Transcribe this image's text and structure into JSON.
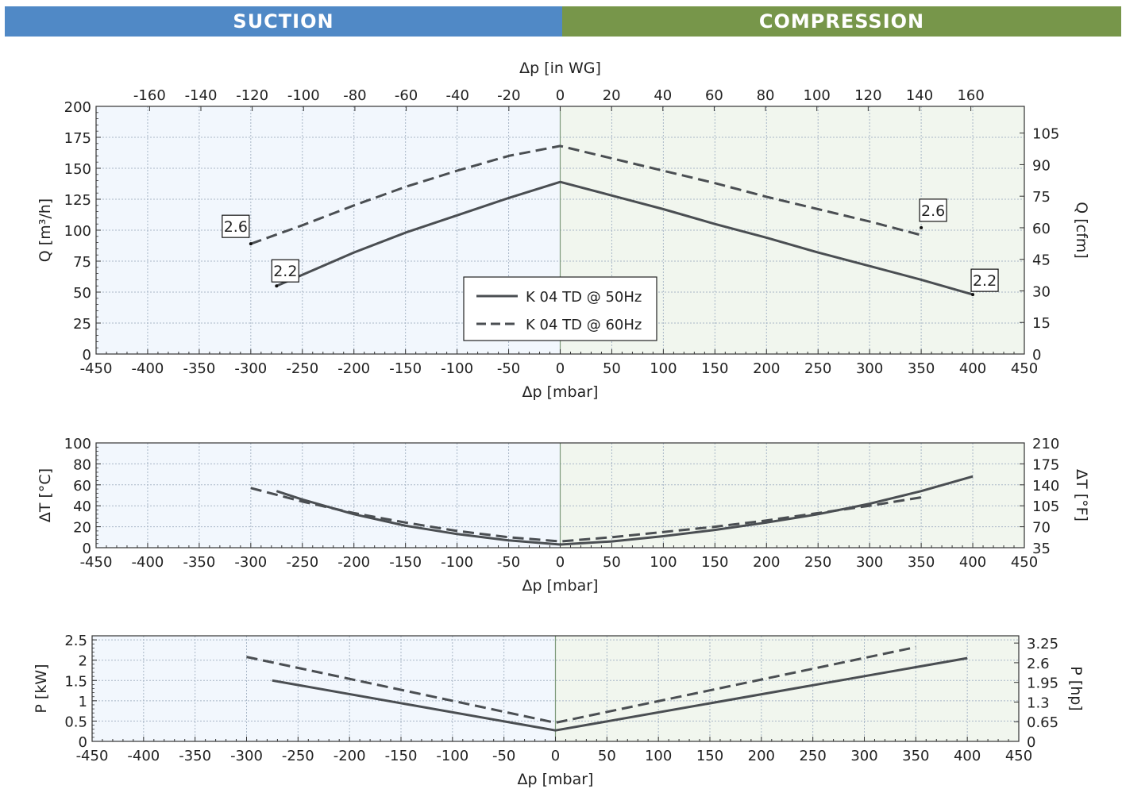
{
  "header": {
    "suction_label": "SUCTION",
    "compression_label": "COMPRESSION",
    "suction_color": "#5089c6",
    "compression_color": "#77964a"
  },
  "colors": {
    "suction_bg": "#f2f7fd",
    "compression_bg": "#f1f6ee",
    "grid": "#a9b7c7",
    "line": "#4a4e52",
    "zero_line": "#7d9a7a"
  },
  "legend": {
    "entries": [
      {
        "label": "K 04 TD @ 50Hz",
        "style": "solid"
      },
      {
        "label": "K 04 TD @ 60Hz",
        "style": "dashed"
      }
    ]
  },
  "chart_data": [
    {
      "type": "line",
      "id": "flow",
      "xlabel": "Δp [mbar]",
      "x2label": "Δp [in WG]",
      "ylabel": "Q [m³/h]",
      "y2label": "Q [cfm]",
      "xlim": [
        -450,
        450
      ],
      "ylim": [
        0,
        200
      ],
      "x_ticks": [
        -450,
        -400,
        -350,
        -300,
        -250,
        -200,
        -150,
        -100,
        -50,
        0,
        50,
        100,
        150,
        200,
        250,
        300,
        350,
        400,
        450
      ],
      "y_ticks": [
        0,
        25,
        50,
        75,
        100,
        125,
        150,
        175,
        200
      ],
      "x2_ticks": [
        -160,
        -140,
        -120,
        -100,
        -80,
        -60,
        -40,
        -20,
        0,
        20,
        40,
        60,
        80,
        100,
        120,
        140,
        160
      ],
      "y2_ticks": [
        0,
        15,
        30,
        45,
        60,
        75,
        90,
        105
      ],
      "y2_max": 117.7,
      "legend": "center",
      "grid": true,
      "series": [
        {
          "name": "K 04 TD @ 50Hz",
          "style": "solid",
          "x": [
            -275,
            -250,
            -200,
            -150,
            -100,
            -50,
            0,
            50,
            100,
            150,
            200,
            250,
            300,
            350,
            400
          ],
          "y": [
            55,
            64,
            82,
            98,
            112,
            126,
            139,
            128,
            117,
            105,
            94,
            82,
            71,
            60,
            48
          ]
        },
        {
          "name": "K 04 TD @ 60Hz",
          "style": "dashed",
          "x": [
            -300,
            -250,
            -200,
            -150,
            -100,
            -50,
            0,
            50,
            100,
            150,
            200,
            250,
            300,
            350
          ],
          "y": [
            89,
            104,
            120,
            135,
            148,
            160,
            168,
            158,
            148,
            138,
            127,
            117,
            107,
            96
          ]
        }
      ],
      "annotations": [
        {
          "text": "2.6",
          "x": -300,
          "y": 89
        },
        {
          "text": "2.2",
          "x": -275,
          "y": 55
        },
        {
          "text": "2.6",
          "x": 350,
          "y": 102
        },
        {
          "text": "2.2",
          "x": 400,
          "y": 48
        }
      ]
    },
    {
      "type": "line",
      "id": "temp",
      "xlabel": "Δp [mbar]",
      "ylabel": "ΔT [°C]",
      "y2label": "ΔT [°F]",
      "xlim": [
        -450,
        450
      ],
      "ylim": [
        0,
        100
      ],
      "x_ticks": [
        -450,
        -400,
        -350,
        -300,
        -250,
        -200,
        -150,
        -100,
        -50,
        0,
        50,
        100,
        150,
        200,
        250,
        300,
        350,
        400,
        450
      ],
      "y_ticks": [
        0,
        20,
        40,
        60,
        80,
        100
      ],
      "y2_ticks": [
        35,
        70,
        105,
        140,
        175,
        210
      ],
      "y2_lim": [
        35,
        210
      ],
      "grid": true,
      "series": [
        {
          "name": "K 04 TD @ 50Hz",
          "style": "solid",
          "x": [
            -275,
            -250,
            -200,
            -150,
            -100,
            -50,
            0,
            50,
            100,
            150,
            200,
            250,
            300,
            350,
            400
          ],
          "y": [
            54,
            46,
            32,
            21,
            13,
            7,
            3,
            6,
            11,
            17,
            24,
            32,
            42,
            54,
            68
          ]
        },
        {
          "name": "K 04 TD @ 60Hz",
          "style": "dashed",
          "x": [
            -300,
            -250,
            -200,
            -150,
            -100,
            -50,
            0,
            50,
            100,
            150,
            200,
            250,
            300,
            350
          ],
          "y": [
            57,
            44,
            33,
            24,
            16,
            10,
            6,
            10,
            15,
            20,
            26,
            33,
            40,
            48
          ]
        }
      ]
    },
    {
      "type": "line",
      "id": "power",
      "xlabel": "Δp [mbar]",
      "ylabel": "P [kW]",
      "y2label": "P [hp]",
      "xlim": [
        -450,
        450
      ],
      "ylim": [
        0,
        2.6
      ],
      "x_ticks": [
        -450,
        -400,
        -350,
        -300,
        -250,
        -200,
        -150,
        -100,
        -50,
        0,
        50,
        100,
        150,
        200,
        250,
        300,
        350,
        400,
        450
      ],
      "y_ticks": [
        0,
        0.5,
        1,
        1.5,
        2,
        2.5
      ],
      "y_tick_labels": [
        "0",
        "0.5",
        "1",
        "1.5",
        "2",
        "2.5"
      ],
      "y2_ticks": [
        0,
        0.65,
        1.3,
        1.95,
        2.6,
        3.25
      ],
      "y2_tick_labels": [
        "0",
        "0.65",
        "1.3",
        "1.95",
        "2.6",
        "3.25"
      ],
      "y2_max": 3.49,
      "grid": true,
      "series": [
        {
          "name": "K 04 TD @ 50Hz",
          "style": "solid",
          "x": [
            -275,
            0,
            400
          ],
          "y": [
            1.5,
            0.27,
            2.05
          ]
        },
        {
          "name": "K 04 TD @ 60Hz",
          "style": "dashed",
          "x": [
            -300,
            0,
            350
          ],
          "y": [
            2.08,
            0.46,
            2.32
          ]
        }
      ]
    }
  ]
}
